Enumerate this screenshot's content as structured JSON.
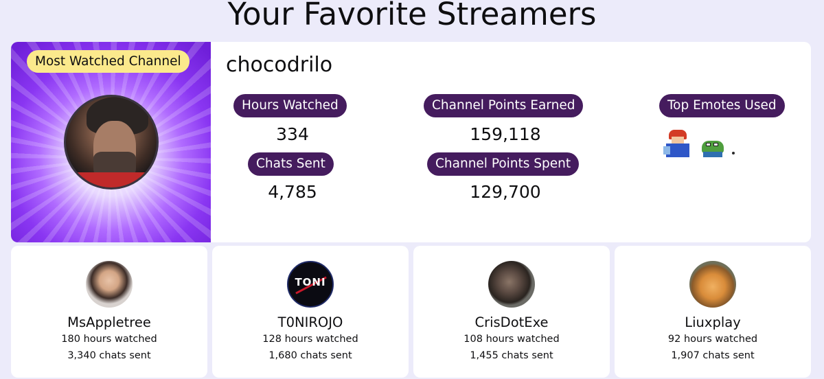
{
  "page": {
    "title": "Your Favorite Streamers"
  },
  "featured": {
    "badge": "Most Watched Channel",
    "channel_name": "chocodrilo",
    "stats": {
      "hours_watched": {
        "label": "Hours Watched",
        "value": "334"
      },
      "chats_sent": {
        "label": "Chats Sent",
        "value": "4,785"
      },
      "points_earned": {
        "label": "Channel Points Earned",
        "value": "159,118"
      },
      "points_spent": {
        "label": "Channel Points Spent",
        "value": "129,700"
      },
      "top_emotes": {
        "label": "Top Emotes Used",
        "emotes": [
          "knight-emote-icon",
          "pepe-emote-icon",
          "dot-emote-icon"
        ]
      }
    }
  },
  "streamers": [
    {
      "name": "MsAppletree",
      "hours": "180 hours watched",
      "chats": "3,340 chats sent"
    },
    {
      "name": "T0NIROJO",
      "hours": "128 hours watched",
      "chats": "1,680 chats sent",
      "avatar_text": "TONI"
    },
    {
      "name": "CrisDotExe",
      "hours": "108 hours watched",
      "chats": "1,455 chats sent"
    },
    {
      "name": "Liuxplay",
      "hours": "92 hours watched",
      "chats": "1,907 chats sent"
    }
  ],
  "colors": {
    "background": "#ecebfa",
    "pill": "#451c5e",
    "badge": "#fbe98c",
    "hero": "#8a36f2"
  }
}
